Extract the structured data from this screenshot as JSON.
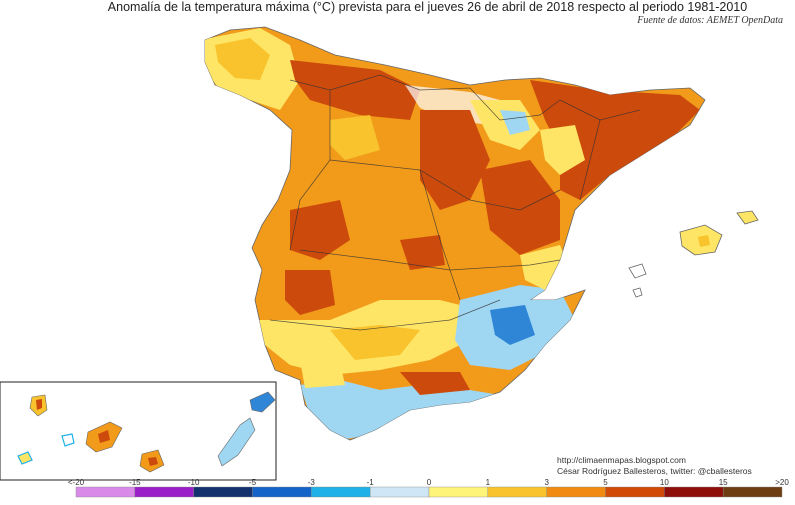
{
  "title": "Anomalía de la temperatura máxima (°C) prevista para el jueves 26 de abril de 2018 respecto al periodo 1981-2010",
  "source": "Fuente de datos: AEMET OpenData",
  "credits": {
    "url": "http://climaenmapas.blogspot.com",
    "author": "César Rodríguez Ballesteros, twitter: @cballesteros"
  },
  "legend": {
    "ticks": [
      "<-20",
      "-15",
      "-10",
      "-5",
      "-3",
      "-1",
      "0",
      "1",
      "3",
      "5",
      "10",
      "15",
      ">20"
    ],
    "colors": [
      "#d98ae8",
      "#9b1fc9",
      "#14316e",
      "#1463c8",
      "#1fb1e8",
      "#cfe6f7",
      "#ffffff",
      "#fff47a",
      "#f8c32c",
      "#f08a10",
      "#d24a08",
      "#8e0f0a",
      "#6e3d12"
    ]
  },
  "palette": {
    "land_base": "#f29a1a",
    "strong_warm": "#cc4a0c",
    "mild_warm": "#ffe566",
    "cool": "#9fd6f2",
    "cold": "#2f86d6",
    "border": "#333333"
  }
}
